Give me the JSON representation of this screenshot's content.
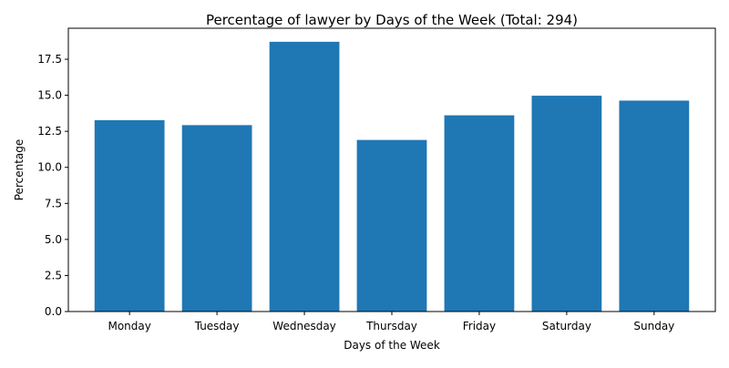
{
  "chart_data": {
    "type": "bar",
    "title": "Percentage of lawyer by Days of the Week (Total: 294)",
    "xlabel": "Days of the Week",
    "ylabel": "Percentage",
    "categories": [
      "Monday",
      "Tuesday",
      "Wednesday",
      "Thursday",
      "Friday",
      "Saturday",
      "Sunday"
    ],
    "values": [
      13.27,
      12.93,
      18.71,
      11.9,
      13.61,
      14.97,
      14.63
    ],
    "ylim": [
      0,
      19.65
    ],
    "yticks": [
      0,
      2.5,
      5,
      7.5,
      10,
      12.5,
      15,
      17.5
    ],
    "ytick_labels": [
      "0.0",
      "2.5",
      "5.0",
      "7.5",
      "10.0",
      "12.5",
      "15.0",
      "17.5"
    ],
    "bar_color": "#1f77b4",
    "grid": false,
    "legend": "none"
  }
}
